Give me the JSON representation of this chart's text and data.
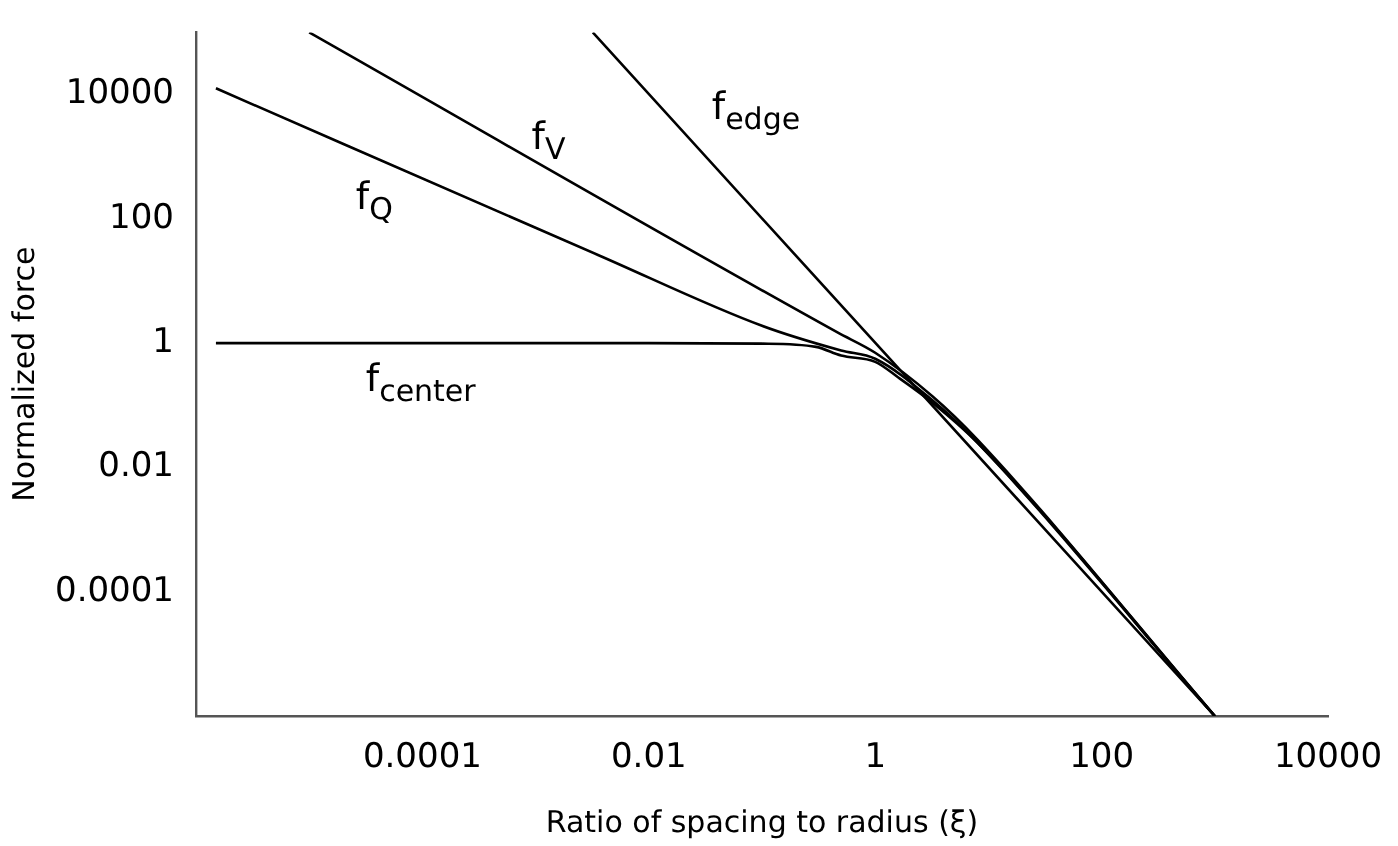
{
  "chart_data": {
    "type": "line",
    "xlabel": "Ratio of spacing to radius (ξ)",
    "ylabel": "Normalized force",
    "log": "xy",
    "xlim": [
      1e-06,
      10000
    ],
    "ylim": [
      1e-06,
      100000
    ],
    "xticks": [
      0.0001,
      0.01,
      1,
      100,
      10000
    ],
    "yticks": [
      0.0001,
      0.01,
      1,
      100,
      10000
    ],
    "grid": false,
    "legend": false,
    "marker": "none",
    "line_style": "solid",
    "series": [
      {
        "name": "f$_{center}$",
        "color": "#000000",
        "x": [
          1.5e-06,
          0.01,
          0.1,
          0.3,
          0.5,
          1,
          1.6,
          3.2,
          8,
          1000
        ],
        "values": [
          1,
          1,
          0.98,
          0.87,
          0.63,
          0.5,
          0.28,
          0.11,
          0.025,
          1e-06
        ]
      },
      {
        "name": "f$_{Q}$",
        "color": "#000000",
        "x": [
          1.5e-06,
          0.0036,
          0.1,
          0.5,
          1,
          3.2,
          8,
          1000
        ],
        "values": [
          12600,
          26,
          1.9,
          0.76,
          0.56,
          0.12,
          0.025,
          1e-06
        ]
      },
      {
        "name": "f$_{V}$",
        "color": "#000000",
        "x": [
          1e-05,
          0.46,
          1,
          3.2,
          8,
          1000
        ],
        "values": [
          100000,
          1.5,
          0.7,
          0.14,
          0.028,
          1e-06
        ]
      },
      {
        "name": "f$_{edge}$",
        "color": "#000000",
        "x": [
          0.0032,
          1000
        ],
        "values": [
          100000,
          1e-06
        ]
      }
    ]
  }
}
